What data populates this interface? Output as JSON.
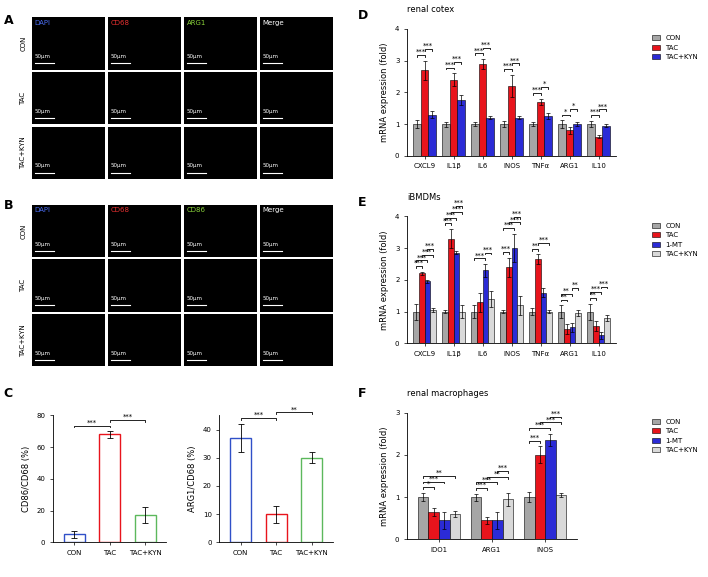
{
  "image_panels": [
    {
      "panel": "A",
      "rows": [
        "CON",
        "TAC",
        "TAC+KYN"
      ],
      "columns": [
        {
          "label": "DAPI",
          "color": "#4a6cf0"
        },
        {
          "label": "CD68",
          "color": "#e83030"
        },
        {
          "label": "ARG1",
          "color": "#8ad43a"
        },
        {
          "label": "Merge",
          "color": "#ffffff"
        }
      ],
      "scale_bar": "50μm"
    },
    {
      "panel": "B",
      "rows": [
        "CON",
        "TAC",
        "TAC+KYN"
      ],
      "columns": [
        {
          "label": "DAPI",
          "color": "#4a6cf0"
        },
        {
          "label": "CD68",
          "color": "#e83030"
        },
        {
          "label": "CD86",
          "color": "#8ad43a"
        },
        {
          "label": "Merge",
          "color": "#ffffff"
        }
      ],
      "scale_bar": "50μm"
    }
  ],
  "chart_data": [
    {
      "panel": "C",
      "type": "bar",
      "ylabel": "CD86/CD68 (%)",
      "categories": [
        "CON",
        "TAC",
        "TAC+KYN"
      ],
      "values": [
        5,
        68,
        17
      ],
      "errors": [
        2,
        2,
        5
      ],
      "colors": [
        "#3050c8",
        "#e8141c",
        "#5cb85c"
      ],
      "ylim": [
        0,
        80
      ],
      "yticks": [
        0,
        20,
        40,
        60,
        80
      ],
      "significance": [
        {
          "pair": [
            0,
            1
          ],
          "label": "***"
        },
        {
          "pair": [
            1,
            2
          ],
          "label": "***"
        }
      ]
    },
    {
      "type": "bar",
      "ylabel": "ARG1/CD68 (%)",
      "categories": [
        "CON",
        "TAC",
        "TAC+KYN"
      ],
      "values": [
        37,
        10,
        30
      ],
      "errors": [
        5,
        3,
        2
      ],
      "colors": [
        "#3050c8",
        "#e8141c",
        "#5cb85c"
      ],
      "ylim": [
        0,
        45
      ],
      "yticks": [
        0,
        10,
        20,
        30,
        40
      ],
      "significance": [
        {
          "pair": [
            0,
            1
          ],
          "label": "***"
        },
        {
          "pair": [
            1,
            2
          ],
          "label": "**"
        }
      ]
    },
    {
      "panel": "D",
      "type": "bar",
      "title": "renal cotex",
      "ylabel": "mRNA expression (fold)",
      "categories": [
        "CXCL9",
        "IL1β",
        "IL6",
        "INOS",
        "TNFα",
        "ARG1",
        "IL10"
      ],
      "series": [
        {
          "name": "CON",
          "color": "#a6a6a6",
          "values": [
            1.0,
            1.0,
            1.0,
            1.0,
            1.0,
            1.0,
            1.0
          ],
          "errors": [
            0.12,
            0.08,
            0.05,
            0.1,
            0.05,
            0.12,
            0.1
          ]
        },
        {
          "name": "TAC",
          "color": "#e8141c",
          "values": [
            2.7,
            2.4,
            2.9,
            2.2,
            1.7,
            0.8,
            0.6
          ],
          "errors": [
            0.3,
            0.2,
            0.15,
            0.35,
            0.1,
            0.1,
            0.05
          ]
        },
        {
          "name": "TAC+KYN",
          "color": "#2b2bd6",
          "values": [
            1.3,
            1.75,
            1.2,
            1.2,
            1.25,
            1.0,
            0.95
          ],
          "errors": [
            0.1,
            0.15,
            0.05,
            0.05,
            0.1,
            0.05,
            0.05
          ]
        }
      ],
      "ylim": [
        0,
        4
      ],
      "yticks": [
        0,
        1,
        2,
        3,
        4
      ],
      "legend": "upper right",
      "significance": [
        {
          "category": 0,
          "pair": [
            0,
            1
          ],
          "label": "***"
        },
        {
          "category": 0,
          "pair": [
            1,
            2
          ],
          "label": "***"
        },
        {
          "category": 1,
          "pair": [
            0,
            1
          ],
          "label": "***"
        },
        {
          "category": 1,
          "pair": [
            1,
            2
          ],
          "label": "***"
        },
        {
          "category": 2,
          "pair": [
            0,
            1
          ],
          "label": "***"
        },
        {
          "category": 2,
          "pair": [
            1,
            2
          ],
          "label": "***"
        },
        {
          "category": 3,
          "pair": [
            0,
            1
          ],
          "label": "***"
        },
        {
          "category": 3,
          "pair": [
            1,
            2
          ],
          "label": "***"
        },
        {
          "category": 4,
          "pair": [
            0,
            1
          ],
          "label": "***"
        },
        {
          "category": 4,
          "pair": [
            1,
            2
          ],
          "label": "*"
        },
        {
          "category": 5,
          "pair": [
            0,
            1
          ],
          "label": "*"
        },
        {
          "category": 5,
          "pair": [
            1,
            2
          ],
          "label": "*"
        },
        {
          "category": 6,
          "pair": [
            0,
            1
          ],
          "label": "***"
        },
        {
          "category": 6,
          "pair": [
            1,
            2
          ],
          "label": "***"
        }
      ]
    },
    {
      "panel": "E",
      "type": "bar",
      "title": "iBMDMs",
      "ylabel": "mRNA expression (fold)",
      "categories": [
        "CXCL9",
        "IL1β",
        "IL6",
        "INOS",
        "TNFα",
        "ARG1",
        "IL10"
      ],
      "series": [
        {
          "name": "CON",
          "color": "#a6a6a6",
          "values": [
            1.0,
            1.0,
            1.0,
            1.0,
            1.0,
            1.0,
            1.0
          ],
          "errors": [
            0.25,
            0.05,
            0.2,
            0.05,
            0.1,
            0.2,
            0.25
          ]
        },
        {
          "name": "TAC",
          "color": "#e8141c",
          "values": [
            2.2,
            3.3,
            1.3,
            2.4,
            2.65,
            0.45,
            0.55
          ],
          "errors": [
            0.05,
            0.3,
            0.3,
            0.3,
            0.15,
            0.15,
            0.15
          ]
        },
        {
          "name": "1-MT",
          "color": "#2b2bd6",
          "values": [
            1.95,
            2.85,
            2.3,
            3.0,
            1.6,
            0.5,
            0.25
          ],
          "errors": [
            0.05,
            0.05,
            0.2,
            0.45,
            0.15,
            0.15,
            0.1
          ]
        },
        {
          "name": "TAC+KYN",
          "color": "#d9d9d9",
          "values": [
            1.05,
            1.0,
            1.4,
            1.2,
            1.0,
            0.95,
            0.8
          ],
          "errors": [
            0.05,
            0.2,
            0.25,
            0.3,
            0.05,
            0.1,
            0.1
          ]
        }
      ],
      "ylim": [
        0,
        4
      ],
      "yticks": [
        0,
        1,
        2,
        3,
        4
      ],
      "legend": "upper right",
      "significance": [
        {
          "category": 0,
          "pair": [
            0,
            1
          ],
          "label": "***"
        },
        {
          "category": 0,
          "pair": [
            0,
            2
          ],
          "label": "***"
        },
        {
          "category": 0,
          "pair": [
            1,
            3
          ],
          "label": "***"
        },
        {
          "category": 0,
          "pair": [
            2,
            3
          ],
          "label": "***"
        },
        {
          "category": 1,
          "pair": [
            0,
            1
          ],
          "label": "***"
        },
        {
          "category": 1,
          "pair": [
            0,
            2
          ],
          "label": "***"
        },
        {
          "category": 1,
          "pair": [
            1,
            3
          ],
          "label": "***"
        },
        {
          "category": 1,
          "pair": [
            2,
            3
          ],
          "label": "***"
        },
        {
          "category": 2,
          "pair": [
            0,
            2
          ],
          "label": "***"
        },
        {
          "category": 2,
          "pair": [
            2,
            3
          ],
          "label": "***"
        },
        {
          "category": 3,
          "pair": [
            0,
            1
          ],
          "label": "***"
        },
        {
          "category": 3,
          "pair": [
            0,
            2
          ],
          "label": "***"
        },
        {
          "category": 3,
          "pair": [
            1,
            3
          ],
          "label": "***"
        },
        {
          "category": 3,
          "pair": [
            2,
            3
          ],
          "label": "***"
        },
        {
          "category": 4,
          "pair": [
            0,
            1
          ],
          "label": "**"
        },
        {
          "category": 4,
          "pair": [
            1,
            3
          ],
          "label": "***"
        },
        {
          "category": 5,
          "pair": [
            0,
            1
          ],
          "label": "**"
        },
        {
          "category": 5,
          "pair": [
            0,
            2
          ],
          "label": "**"
        },
        {
          "category": 5,
          "pair": [
            2,
            3
          ],
          "label": "**"
        },
        {
          "category": 6,
          "pair": [
            0,
            1
          ],
          "label": "**"
        },
        {
          "category": 6,
          "pair": [
            0,
            2
          ],
          "label": "***"
        },
        {
          "category": 6,
          "pair": [
            2,
            3
          ],
          "label": "***"
        }
      ]
    },
    {
      "panel": "F",
      "type": "bar",
      "title": "renal macrophages",
      "ylabel": "mRNA expression (fold)",
      "categories": [
        "IDO1",
        "ARG1",
        "iNOS"
      ],
      "series": [
        {
          "name": "CON",
          "color": "#a6a6a6",
          "values": [
            1.0,
            1.0,
            1.0
          ],
          "errors": [
            0.1,
            0.08,
            0.12
          ]
        },
        {
          "name": "TAC",
          "color": "#e8141c",
          "values": [
            0.65,
            0.45,
            2.0
          ],
          "errors": [
            0.1,
            0.08,
            0.2
          ]
        },
        {
          "name": "1-MT",
          "color": "#2b2bd6",
          "values": [
            0.45,
            0.45,
            2.35
          ],
          "errors": [
            0.2,
            0.2,
            0.15
          ]
        },
        {
          "name": "TAC+KYN",
          "color": "#d9d9d9",
          "values": [
            0.6,
            0.95,
            1.05
          ],
          "errors": [
            0.08,
            0.15,
            0.05
          ]
        }
      ],
      "ylim": [
        0,
        3
      ],
      "yticks": [
        0,
        1,
        2,
        3
      ],
      "legend": "upper right",
      "significance": [
        {
          "category": 0,
          "pair": [
            0,
            1
          ],
          "label": "*"
        },
        {
          "category": 0,
          "pair": [
            0,
            2
          ],
          "label": "***"
        },
        {
          "category": 0,
          "pair": [
            0,
            3
          ],
          "label": "**"
        },
        {
          "category": 1,
          "pair": [
            0,
            1
          ],
          "label": "***"
        },
        {
          "category": 1,
          "pair": [
            0,
            2
          ],
          "label": "***"
        },
        {
          "category": 1,
          "pair": [
            1,
            3
          ],
          "label": "**"
        },
        {
          "category": 1,
          "pair": [
            2,
            3
          ],
          "label": "***"
        },
        {
          "category": 2,
          "pair": [
            0,
            1
          ],
          "label": "***"
        },
        {
          "category": 2,
          "pair": [
            0,
            2
          ],
          "label": "***"
        },
        {
          "category": 2,
          "pair": [
            1,
            3
          ],
          "label": "***"
        },
        {
          "category": 2,
          "pair": [
            2,
            3
          ],
          "label": "***"
        }
      ]
    }
  ]
}
